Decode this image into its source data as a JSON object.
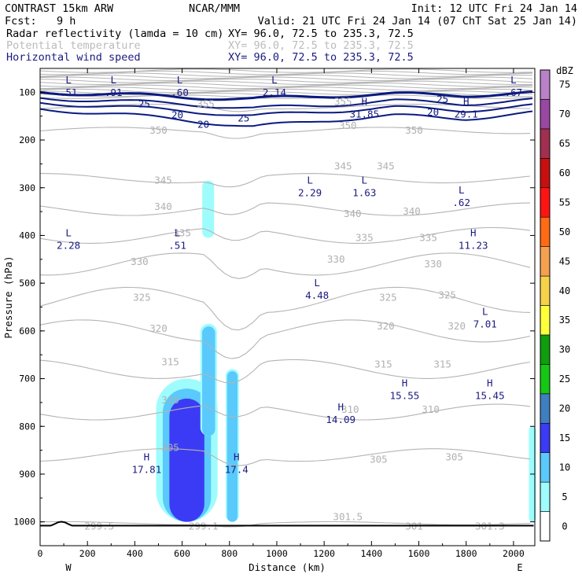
{
  "header": {
    "model": "CONTRAST 15km ARW",
    "org": "NCAR/MMM",
    "init": "Init: 12 UTC Fri 24 Jan 14",
    "fcst_label": "Fcst:",
    "fcst_value": "9 h",
    "valid": "Valid: 21 UTC Fri 24 Jan 14 (07 ChT Sat 25 Jan 14)",
    "fields": [
      {
        "name": "Radar reflectivity (lamda = 10 cm)",
        "xy": "XY=  96.0, 72.5 to 235.3, 72.5",
        "color": "#000000"
      },
      {
        "name": "Potential temperature",
        "xy": "XY=  96.0, 72.5 to 235.3, 72.5",
        "color": "#bbbbbb"
      },
      {
        "name": "Horizontal wind speed",
        "xy": "XY=  96.0, 72.5 to 235.3, 72.5",
        "color": "#1a1a80"
      }
    ]
  },
  "chart_data": {
    "type": "heatmap",
    "xlabel": "Distance (km)",
    "ylabel": "Pressure (hPa)",
    "xlim": [
      0,
      2090
    ],
    "ylim": [
      1050,
      50
    ],
    "x_ticks": [
      0,
      200,
      400,
      600,
      800,
      1000,
      1200,
      1400,
      1600,
      1800,
      2000
    ],
    "y_ticks": [
      100,
      200,
      300,
      400,
      500,
      600,
      700,
      800,
      900,
      1000
    ],
    "x_end_labels": {
      "left": "W",
      "right": "E"
    },
    "colorbar": {
      "unit": "dBZ",
      "levels": [
        0,
        5,
        10,
        15,
        20,
        25,
        30,
        35,
        40,
        45,
        50,
        55,
        60,
        65,
        70,
        75
      ],
      "colors": [
        "#ffffff",
        "#9ffcfc",
        "#5ac9fb",
        "#3b3bf5",
        "#3f7fbf",
        "#14c814",
        "#0e9e0e",
        "#ffff3c",
        "#f6d24a",
        "#f5a050",
        "#ff6a14",
        "#ff1414",
        "#c80f0f",
        "#a03050",
        "#9a47a3",
        "#b982c8"
      ]
    },
    "reflectivity_cells": [
      {
        "x_center": 620,
        "x_halfwidth": 130,
        "p_top": 700,
        "p_bottom": 1000,
        "value": 15
      },
      {
        "x_center": 710,
        "x_halfwidth": 25,
        "p_top": 285,
        "p_bottom": 405,
        "value": 5
      },
      {
        "x_center": 712,
        "x_halfwidth": 35,
        "p_top": 585,
        "p_bottom": 820,
        "value": 10
      },
      {
        "x_center": 812,
        "x_halfwidth": 28,
        "p_top": 680,
        "p_bottom": 1000,
        "value": 10
      },
      {
        "x_center": 2080,
        "x_halfwidth": 15,
        "p_top": 800,
        "p_bottom": 1000,
        "value": 5
      }
    ],
    "theta_contours": [
      {
        "label": "299.5",
        "x": 250,
        "p": 1010
      },
      {
        "label": "299.1",
        "x": 690,
        "p": 1010
      },
      {
        "label": "301.5",
        "x": 1300,
        "p": 990
      },
      {
        "label": "301",
        "x": 1580,
        "p": 1010
      },
      {
        "label": "301.3",
        "x": 1900,
        "p": 1010
      },
      {
        "label": "305",
        "x": 550,
        "p": 845
      },
      {
        "label": "305",
        "x": 1430,
        "p": 870
      },
      {
        "label": "305",
        "x": 1750,
        "p": 865
      },
      {
        "label": "310",
        "x": 550,
        "p": 745
      },
      {
        "label": "310",
        "x": 1310,
        "p": 765
      },
      {
        "label": "310",
        "x": 1650,
        "p": 765
      },
      {
        "label": "315",
        "x": 550,
        "p": 665
      },
      {
        "label": "315",
        "x": 1450,
        "p": 670
      },
      {
        "label": "315",
        "x": 1700,
        "p": 670
      },
      {
        "label": "320",
        "x": 500,
        "p": 595
      },
      {
        "label": "320",
        "x": 1460,
        "p": 590
      },
      {
        "label": "320",
        "x": 1760,
        "p": 590
      },
      {
        "label": "325",
        "x": 430,
        "p": 530
      },
      {
        "label": "325",
        "x": 1470,
        "p": 530
      },
      {
        "label": "325",
        "x": 1720,
        "p": 525
      },
      {
        "label": "330",
        "x": 420,
        "p": 455
      },
      {
        "label": "330",
        "x": 1250,
        "p": 450
      },
      {
        "label": "330",
        "x": 1660,
        "p": 460
      },
      {
        "label": "335",
        "x": 600,
        "p": 395
      },
      {
        "label": "335",
        "x": 1370,
        "p": 405
      },
      {
        "label": "335",
        "x": 1640,
        "p": 405
      },
      {
        "label": "340",
        "x": 520,
        "p": 340
      },
      {
        "label": "340",
        "x": 1320,
        "p": 355
      },
      {
        "label": "340",
        "x": 1570,
        "p": 350
      },
      {
        "label": "345",
        "x": 520,
        "p": 285
      },
      {
        "label": "345",
        "x": 1280,
        "p": 255
      },
      {
        "label": "345",
        "x": 1460,
        "p": 255
      },
      {
        "label": "350",
        "x": 500,
        "p": 180
      },
      {
        "label": "350",
        "x": 1300,
        "p": 170
      },
      {
        "label": "350",
        "x": 1580,
        "p": 180
      },
      {
        "label": "355",
        "x": 700,
        "p": 125
      },
      {
        "label": "355",
        "x": 1280,
        "p": 120
      }
    ],
    "wind_contours": [
      {
        "label": "25",
        "x": 440,
        "p": 125
      },
      {
        "label": "20",
        "x": 580,
        "p": 148
      },
      {
        "label": "20",
        "x": 690,
        "p": 168
      },
      {
        "label": "25",
        "x": 860,
        "p": 155
      },
      {
        "label": "20",
        "x": 1660,
        "p": 142
      },
      {
        "label": "25",
        "x": 1700,
        "p": 115
      }
    ],
    "extrema": [
      {
        "type": "L",
        "value": ".51",
        "x": 120,
        "p": 75
      },
      {
        "type": "L",
        "value": ".91",
        "x": 310,
        "p": 75
      },
      {
        "type": "L",
        "value": ".60",
        "x": 590,
        "p": 75
      },
      {
        "type": "L",
        "value": "2.14",
        "x": 990,
        "p": 75
      },
      {
        "type": "H",
        "value": "31.85",
        "x": 1370,
        "p": 120
      },
      {
        "type": "H",
        "value": "29.1",
        "x": 1800,
        "p": 120
      },
      {
        "type": "L",
        "value": ".67",
        "x": 2000,
        "p": 75
      },
      {
        "type": "L",
        "value": "2.29",
        "x": 1140,
        "p": 285
      },
      {
        "type": "L",
        "value": "1.63",
        "x": 1370,
        "p": 285
      },
      {
        "type": "L",
        "value": ".62",
        "x": 1780,
        "p": 305
      },
      {
        "type": "L",
        "value": "2.28",
        "x": 120,
        "p": 395
      },
      {
        "type": "L",
        "value": ".51",
        "x": 580,
        "p": 395
      },
      {
        "type": "H",
        "value": "11.23",
        "x": 1830,
        "p": 395
      },
      {
        "type": "L",
        "value": "4.48",
        "x": 1170,
        "p": 500
      },
      {
        "type": "L",
        "value": "7.01",
        "x": 1880,
        "p": 560
      },
      {
        "type": "H",
        "value": "15.55",
        "x": 1540,
        "p": 710
      },
      {
        "type": "H",
        "value": "15.45",
        "x": 1900,
        "p": 710
      },
      {
        "type": "H",
        "value": "14.09",
        "x": 1270,
        "p": 760
      },
      {
        "type": "H",
        "value": "17.81",
        "x": 450,
        "p": 865
      },
      {
        "type": "H",
        "value": "17.4",
        "x": 830,
        "p": 865
      }
    ]
  }
}
